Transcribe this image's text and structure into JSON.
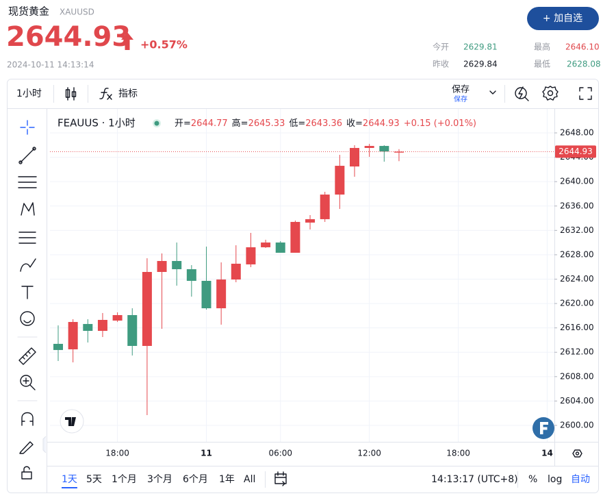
{
  "header": {
    "title": "现货黄金",
    "symbol": "XAUUSD",
    "button": "+ 加自选",
    "price": "2644.93",
    "change": "+0.57%",
    "time": "2024-10-11 14:13:14",
    "stats": [
      {
        "label": "今开",
        "value": "2629.81"
      },
      {
        "label": "最高",
        "value": "2646.10"
      },
      {
        "label": "昨收",
        "value": "2629.84"
      },
      {
        "label": "最低",
        "value": "2628.08"
      }
    ]
  },
  "toolbar": {
    "interval": "1小时",
    "indicators": "指标",
    "save": "保存",
    "save_sub": "保存"
  },
  "bottom_bar": {
    "ranges": [
      "1天",
      "5天",
      "1个月",
      "3个月",
      "6个月",
      "1年",
      "All"
    ],
    "clock": "14:13:17 (UTC+8)",
    "percent": "%",
    "log": "log",
    "auto": "自动"
  },
  "chart_data": {
    "type": "candlestick",
    "title": "FEAUUS · 1小时",
    "legend": [
      {
        "label": "开=",
        "value": "2644.77"
      },
      {
        "label": "高=",
        "value": "2645.33"
      },
      {
        "label": "低=",
        "value": "2643.36"
      },
      {
        "label": "收=",
        "value": "2644.93"
      },
      {
        "label": "",
        "value": "+0.15 (+0.01%)"
      }
    ],
    "categories": [
      null,
      null,
      null,
      null,
      "18:00",
      null,
      null,
      null,
      null,
      null,
      "11",
      null,
      null,
      null,
      null,
      "06:00",
      null,
      null,
      null,
      null,
      null,
      "12:00",
      null,
      null,
      null,
      null,
      null,
      "18:00",
      null,
      null,
      null,
      null,
      null,
      "14"
    ],
    "open": [
      2613.38,
      2612.48,
      2616.64,
      2615.51,
      2617.2,
      2618.1,
      2613.04,
      2625.18,
      2626.98,
      2625.63,
      2623.72,
      2619.22,
      2623.94,
      2626.42,
      2629.23,
      2630.01,
      2628.33,
      2633.28,
      2633.84,
      2637.88,
      2642.49,
      2645.53,
      2645.86,
      2644.77,
      null,
      null,
      null,
      null,
      null,
      null,
      null,
      null,
      null,
      null
    ],
    "high": [
      2616.41,
      2617.42,
      2617.42,
      2618.44,
      2618.55,
      2619.22,
      2627.43,
      2628.22,
      2630.01,
      2626.3,
      2629.34,
      2626.75,
      2629.56,
      2631.59,
      2630.46,
      2630.24,
      2633.61,
      2634.51,
      2638.33,
      2644.4,
      2645.98,
      2646.2,
      2645.98,
      2645.33,
      null,
      null,
      null,
      null,
      null,
      null,
      null,
      null,
      null,
      null
    ],
    "low": [
      2610.57,
      2610.34,
      2613.6,
      2614.5,
      2616.97,
      2611.47,
      2601.69,
      2615.85,
      2622.93,
      2621.13,
      2619.0,
      2616.53,
      2623.49,
      2625.97,
      2629.12,
      2628.33,
      2628.33,
      2632.15,
      2633.39,
      2635.52,
      2640.81,
      2644.07,
      2643.28,
      2643.36,
      null,
      null,
      null,
      null,
      null,
      null,
      null,
      null,
      null,
      null
    ],
    "close": [
      2612.37,
      2616.97,
      2615.51,
      2617.31,
      2618.1,
      2613.04,
      2625.18,
      2626.98,
      2625.63,
      2623.72,
      2619.22,
      2623.94,
      2626.53,
      2629.23,
      2630.01,
      2628.33,
      2633.39,
      2633.84,
      2637.88,
      2642.6,
      2645.53,
      2645.86,
      2644.96,
      2644.93,
      null,
      null,
      null,
      null,
      null,
      null,
      null,
      null,
      null,
      null
    ],
    "up_color": "#e5484d",
    "down_color": "#3f9b80",
    "last_price": 2644.93,
    "ylim": [
      2597.3,
      2649.8
    ],
    "yticks": [
      {
        "value": 2600,
        "label": "2600.00"
      },
      {
        "value": 2604,
        "label": "2604.00"
      },
      {
        "value": 2608,
        "label": "2608.00"
      },
      {
        "value": 2612,
        "label": "2612.00"
      },
      {
        "value": 2616,
        "label": "2616.00"
      },
      {
        "value": 2620,
        "label": "2620.00"
      },
      {
        "value": 2624,
        "label": "2624.00"
      },
      {
        "value": 2628,
        "label": "2628.00"
      },
      {
        "value": 2632,
        "label": "2632.00"
      },
      {
        "value": 2636,
        "label": "2636.00"
      },
      {
        "value": 2640,
        "label": "2640.00"
      },
      {
        "value": 2644,
        "label": "2644.00"
      },
      {
        "value": 2648,
        "label": "2648.00"
      }
    ],
    "grid": true
  }
}
